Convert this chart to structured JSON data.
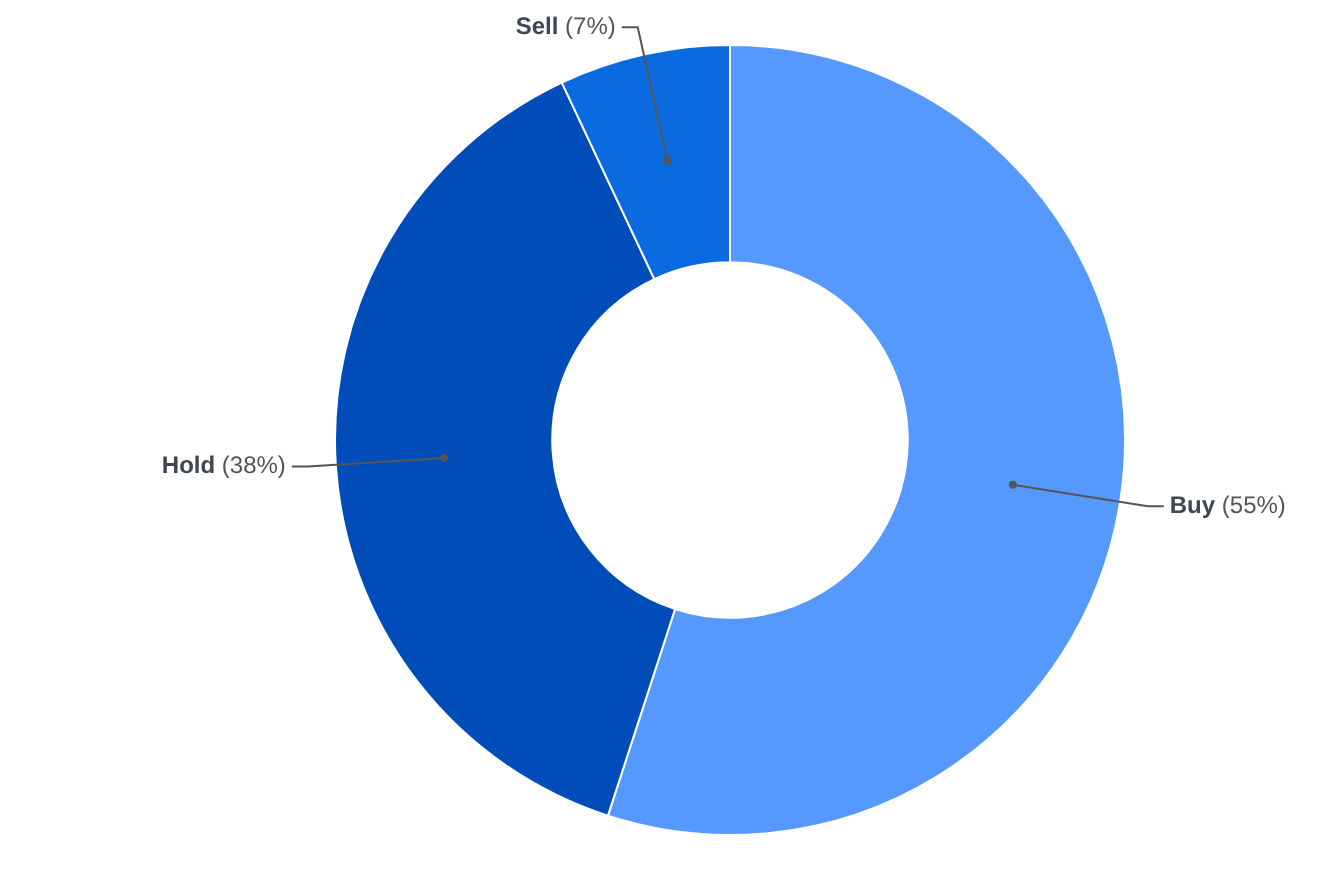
{
  "chart_data": {
    "type": "donut",
    "categories": [
      "Buy",
      "Hold",
      "Sell"
    ],
    "values": [
      55,
      38,
      7
    ],
    "colors": [
      "#5599ff",
      "#004cb8",
      "#0a6be0"
    ],
    "value_labels": [
      "(55%)",
      "(38%)",
      "(7%)"
    ],
    "legend": false
  }
}
